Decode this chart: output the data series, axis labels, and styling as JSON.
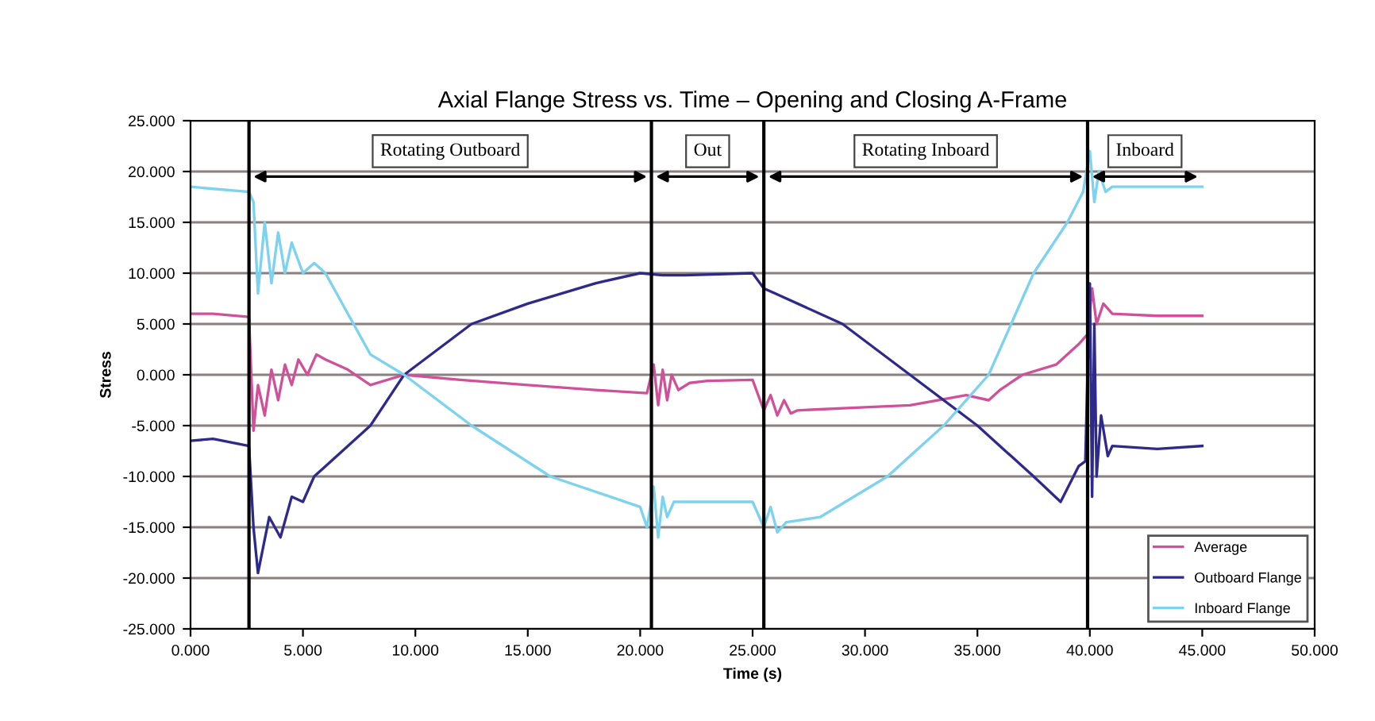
{
  "chart_data": {
    "type": "line",
    "title": "Axial Flange Stress vs. Time – Opening and Closing A-Frame",
    "xlabel": "Time (s)",
    "ylabel": "Stress",
    "xlim": [
      0,
      50
    ],
    "xticks": [
      {
        "value": 0,
        "label": "0.000"
      },
      {
        "value": 5,
        "label": "5.000"
      },
      {
        "value": 10,
        "label": "10.000"
      },
      {
        "value": 15,
        "label": "15.000"
      },
      {
        "value": 20,
        "label": "20.000"
      },
      {
        "value": 25,
        "label": "25.000"
      },
      {
        "value": 30,
        "label": "30.000"
      },
      {
        "value": 35,
        "label": "35.000"
      },
      {
        "value": 40,
        "label": "40.000"
      },
      {
        "value": 45,
        "label": "45.000"
      },
      {
        "value": 50,
        "label": "50.000"
      }
    ],
    "ylim": [
      -25,
      25
    ],
    "yticks": [
      {
        "value": -25,
        "label": "-25.000"
      },
      {
        "value": -20,
        "label": "-20.000"
      },
      {
        "value": -15,
        "label": "-15.000"
      },
      {
        "value": -10,
        "label": "-10.000"
      },
      {
        "value": -5,
        "label": "-5.000"
      },
      {
        "value": 0,
        "label": "0.000"
      },
      {
        "value": 5,
        "label": "5.000"
      },
      {
        "value": 10,
        "label": "10.000"
      },
      {
        "value": 15,
        "label": "15.000"
      },
      {
        "value": 20,
        "label": "20.000"
      },
      {
        "value": 25,
        "label": "25.000"
      }
    ],
    "grid": "y",
    "legend": "bottom right",
    "marker": "none",
    "line_style": "solid",
    "series": [
      {
        "name": "Average",
        "color": "#d0509a",
        "x": [
          0,
          1,
          2.6,
          2.8,
          3.0,
          3.3,
          3.6,
          3.9,
          4.2,
          4.5,
          4.8,
          5.2,
          5.6,
          6.0,
          7,
          8,
          9.5,
          12,
          15,
          18,
          20.3,
          20.6,
          20.8,
          21.0,
          21.2,
          21.4,
          21.7,
          22.2,
          23,
          25,
          25.5,
          25.8,
          26.1,
          26.4,
          26.7,
          27,
          30,
          32,
          34.5,
          35.5,
          36,
          37,
          38.5,
          39.5,
          39.9,
          40.1,
          40.3,
          40.6,
          41,
          43,
          45
        ],
        "values": [
          6,
          6,
          5.7,
          -5.5,
          -1,
          -4,
          0.5,
          -2.5,
          1,
          -1,
          1.5,
          0,
          2,
          1.5,
          0.5,
          -1,
          0,
          -0.5,
          -1,
          -1.5,
          -1.8,
          1,
          -3,
          0.5,
          -2.5,
          0,
          -1.5,
          -0.8,
          -0.6,
          -0.5,
          -3.5,
          -2,
          -4,
          -2.5,
          -3.8,
          -3.5,
          -3.2,
          -3,
          -2,
          -2.5,
          -1.5,
          0,
          1,
          3,
          4,
          8.5,
          5,
          7,
          6,
          5.8,
          5.8
        ]
      },
      {
        "name": "Outboard Flange",
        "color": "#2e2a8c",
        "x": [
          0,
          1,
          2.6,
          2.8,
          3.0,
          3.5,
          4.0,
          4.5,
          5,
          5.5,
          6,
          8,
          9.5,
          12.5,
          15,
          18,
          20,
          21,
          22,
          25,
          25.5,
          26,
          29,
          32,
          35,
          37.5,
          38.7,
          39.5,
          39.8,
          40.0,
          40.1,
          40.2,
          40.3,
          40.5,
          40.8,
          41,
          43,
          45
        ],
        "values": [
          -6.5,
          -6.3,
          -7,
          -15,
          -19.5,
          -14,
          -16,
          -12,
          -12.5,
          -10,
          -9,
          -5,
          0,
          5,
          7,
          9,
          10,
          9.8,
          9.8,
          10,
          8.5,
          8,
          5,
          0,
          -5,
          -10,
          -12.5,
          -9,
          -8.5,
          9,
          -12,
          5,
          -10,
          -4,
          -8,
          -7,
          -7.3,
          -7
        ]
      },
      {
        "name": "Inboard Flange",
        "color": "#7dd3ef",
        "x": [
          0,
          1,
          2.6,
          2.8,
          3.0,
          3.3,
          3.6,
          3.9,
          4.2,
          4.5,
          5,
          5.5,
          6,
          7,
          8,
          9.5,
          12.5,
          16,
          20,
          20.3,
          20.6,
          20.8,
          21.0,
          21.2,
          21.5,
          22,
          25,
          25.5,
          25.8,
          26.1,
          26.5,
          28,
          31,
          33.5,
          35.5,
          36.5,
          37.5,
          39,
          39.7,
          40.0,
          40.2,
          40.4,
          40.7,
          41,
          43,
          45
        ],
        "values": [
          18.5,
          18.3,
          18,
          17,
          8,
          15,
          9,
          14,
          10,
          13,
          10,
          11,
          10,
          6,
          2,
          0,
          -5,
          -10,
          -13,
          -15,
          -11,
          -16,
          -12,
          -14,
          -12.5,
          -12.5,
          -12.5,
          -15,
          -13,
          -15.5,
          -14.5,
          -14,
          -10,
          -5,
          0,
          5,
          10,
          15,
          18,
          22,
          17,
          20,
          18,
          18.5,
          18.5,
          18.5
        ]
      }
    ],
    "ref_lines": [
      {
        "axis": "x",
        "value": 2.6,
        "color": "#000000",
        "line_style": "solid"
      },
      {
        "axis": "x",
        "value": 20.5,
        "color": "#000000",
        "line_style": "solid"
      },
      {
        "axis": "x",
        "value": 25.5,
        "color": "#000000",
        "line_style": "solid"
      },
      {
        "axis": "x",
        "value": 39.9,
        "color": "#000000",
        "line_style": "solid"
      }
    ],
    "annotations": [
      "Rotating Outboard",
      "Out",
      "Rotating Inboard",
      "Inboard"
    ]
  }
}
